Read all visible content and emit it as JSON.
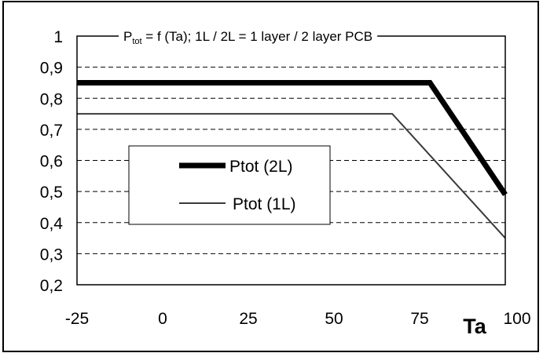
{
  "chart_data": {
    "type": "line",
    "title": {
      "p_main": "P",
      "p_sub": "tot",
      "rest": " = f (Ta); 1L / 2L = 1 layer / 2 layer PCB"
    },
    "xlabel": "Ta",
    "ylabel": "",
    "xlim": [
      -25,
      100
    ],
    "ylim": [
      0.2,
      1.0
    ],
    "x_ticks": [
      -25,
      0,
      25,
      50,
      75,
      100
    ],
    "x_tick_labels": [
      "-25",
      "0",
      "25",
      "50",
      "75",
      "100"
    ],
    "y_ticks": [
      0.2,
      0.3,
      0.4,
      0.5,
      0.6,
      0.7,
      0.8,
      0.9,
      1.0
    ],
    "y_tick_labels": [
      "0,2",
      "0,3",
      "0,4",
      "0,5",
      "0,6",
      "0,7",
      "0,8",
      "0,9",
      "1"
    ],
    "grid": "horizontal dashed",
    "legend_position": "left-middle",
    "series": [
      {
        "name": "Ptot (2L)",
        "color": "#000000",
        "style": "thick",
        "x": [
          -25,
          78,
          100
        ],
        "y": [
          0.85,
          0.85,
          0.49
        ]
      },
      {
        "name": "Ptot (1L)",
        "color": "#3a3a3a",
        "style": "thin",
        "x": [
          -25,
          67,
          100
        ],
        "y": [
          0.75,
          0.75,
          0.35
        ]
      }
    ]
  }
}
